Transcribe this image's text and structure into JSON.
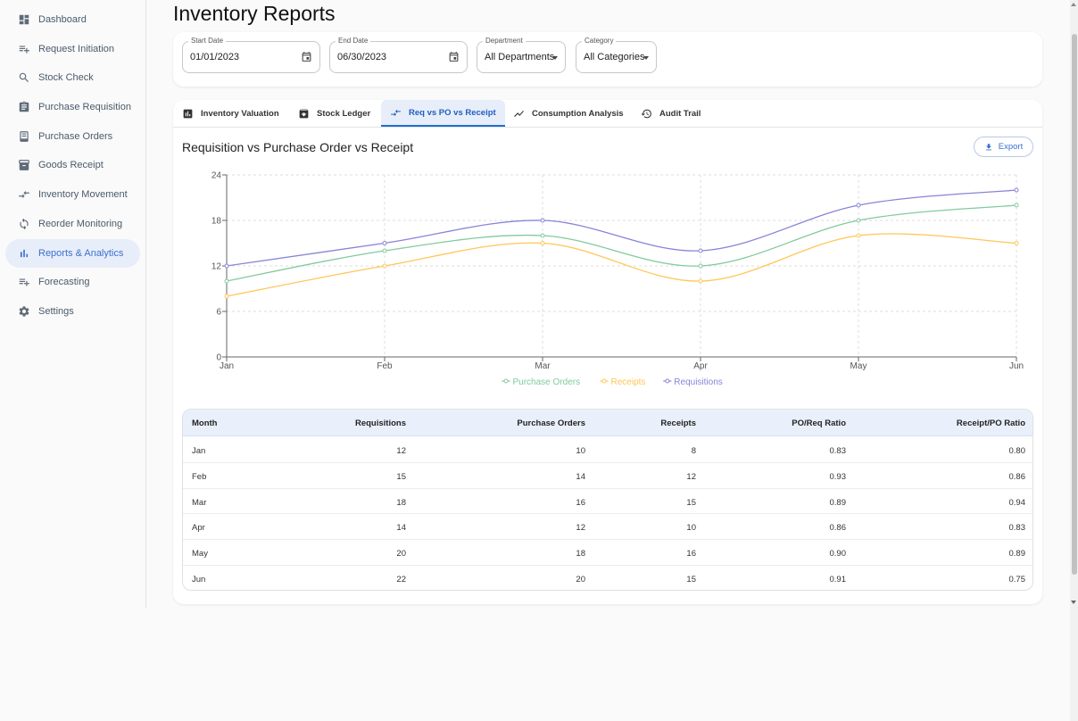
{
  "sidebar": {
    "items": [
      {
        "label": "Dashboard",
        "icon": "dashboard-icon",
        "active": false
      },
      {
        "label": "Request Initiation",
        "icon": "playlist-add-icon",
        "active": false
      },
      {
        "label": "Stock Check",
        "icon": "search-icon",
        "active": false
      },
      {
        "label": "Purchase Requisition",
        "icon": "assignment-icon",
        "active": false
      },
      {
        "label": "Purchase Orders",
        "icon": "receipt-icon",
        "active": false
      },
      {
        "label": "Goods Receipt",
        "icon": "inventory-icon",
        "active": false
      },
      {
        "label": "Inventory Movement",
        "icon": "swap-icon",
        "active": false
      },
      {
        "label": "Reorder Monitoring",
        "icon": "sync-icon",
        "active": false
      },
      {
        "label": "Reports & Analytics",
        "icon": "bar-chart-icon",
        "active": true
      },
      {
        "label": "Forecasting",
        "icon": "playlist-add-icon",
        "active": false
      },
      {
        "label": "Settings",
        "icon": "gear-icon",
        "active": false
      }
    ]
  },
  "page": {
    "title": "Inventory Reports"
  },
  "filters": {
    "start_date": {
      "label": "Start Date",
      "value": "01/01/2023"
    },
    "end_date": {
      "label": "End Date",
      "value": "06/30/2023"
    },
    "department": {
      "label": "Department",
      "value": "All Departments"
    },
    "category": {
      "label": "Category",
      "value": "All Categories"
    }
  },
  "tabs": [
    {
      "label": "Inventory Valuation",
      "icon": "bar-chart-icon",
      "active": false
    },
    {
      "label": "Stock Ledger",
      "icon": "archive-icon",
      "active": false
    },
    {
      "label": "Req vs PO vs Receipt",
      "icon": "compare-arrows-icon",
      "active": true
    },
    {
      "label": "Consumption Analysis",
      "icon": "trending-icon",
      "active": false
    },
    {
      "label": "Audit Trail",
      "icon": "history-icon",
      "active": false
    }
  ],
  "report": {
    "title": "Requisition vs Purchase Order vs Receipt",
    "export_label": "Export"
  },
  "colors": {
    "purchase_orders": "#82ca9d",
    "receipts": "#ffc658",
    "requisitions": "#8884d8",
    "accent": "#3b6fd1"
  },
  "chart_data": {
    "type": "line",
    "x": [
      "Jan",
      "Feb",
      "Mar",
      "Apr",
      "May",
      "Jun"
    ],
    "series": [
      {
        "name": "Purchase Orders",
        "values": [
          10,
          14,
          16,
          12,
          18,
          20
        ]
      },
      {
        "name": "Receipts",
        "values": [
          8,
          12,
          15,
          10,
          16,
          15
        ]
      },
      {
        "name": "Requisitions",
        "values": [
          12,
          15,
          18,
          14,
          20,
          22
        ]
      }
    ],
    "y_ticks": [
      "0",
      "6",
      "12",
      "18",
      "24"
    ],
    "ylim": [
      0,
      24
    ],
    "grid": true,
    "legend": "bottom-center"
  },
  "table": {
    "headers": [
      "Month",
      "Requisitions",
      "Purchase Orders",
      "Receipts",
      "PO/Req Ratio",
      "Receipt/PO Ratio"
    ],
    "rows": [
      [
        "Jan",
        "12",
        "10",
        "8",
        "0.83",
        "0.80"
      ],
      [
        "Feb",
        "15",
        "14",
        "12",
        "0.93",
        "0.86"
      ],
      [
        "Mar",
        "18",
        "16",
        "15",
        "0.89",
        "0.94"
      ],
      [
        "Apr",
        "14",
        "12",
        "10",
        "0.86",
        "0.83"
      ],
      [
        "May",
        "20",
        "18",
        "16",
        "0.90",
        "0.89"
      ],
      [
        "Jun",
        "22",
        "20",
        "15",
        "0.91",
        "0.75"
      ]
    ]
  }
}
